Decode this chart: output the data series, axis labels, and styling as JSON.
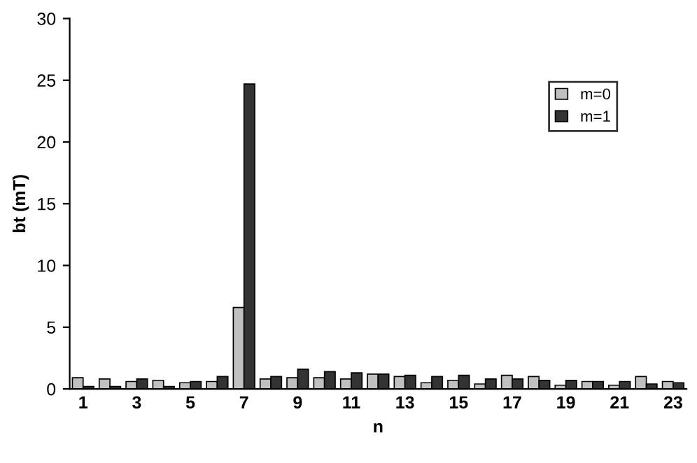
{
  "chart_data": {
    "type": "bar",
    "xlabel": "n",
    "ylabel": "bt (mT)",
    "categories": [
      "1",
      null,
      "3",
      null,
      "5",
      null,
      "7",
      null,
      "9",
      null,
      "11",
      null,
      "13",
      null,
      "15",
      null,
      "17",
      null,
      "19",
      null,
      "21",
      null,
      "23"
    ],
    "series": [
      {
        "name": "m=0",
        "color": "#c0c0c0",
        "values": [
          0.9,
          0.8,
          0.6,
          0.7,
          0.5,
          0.6,
          6.6,
          0.8,
          0.9,
          0.9,
          0.8,
          1.2,
          1.0,
          0.5,
          0.7,
          0.4,
          1.1,
          1.0,
          0.3,
          0.6,
          0.3,
          1.0,
          0.6
        ]
      },
      {
        "name": "m=1",
        "color": "#333333",
        "values": [
          0.2,
          0.2,
          0.8,
          0.2,
          0.6,
          1.0,
          24.7,
          1.0,
          1.6,
          1.4,
          1.3,
          1.2,
          1.1,
          1.0,
          1.1,
          0.8,
          0.8,
          0.7,
          0.7,
          0.6,
          0.6,
          0.4,
          0.5
        ]
      }
    ],
    "ylim": [
      0,
      30
    ],
    "yticks": [
      0,
      5,
      10,
      15,
      20,
      25,
      30
    ],
    "grid": false,
    "legend": "top right"
  }
}
